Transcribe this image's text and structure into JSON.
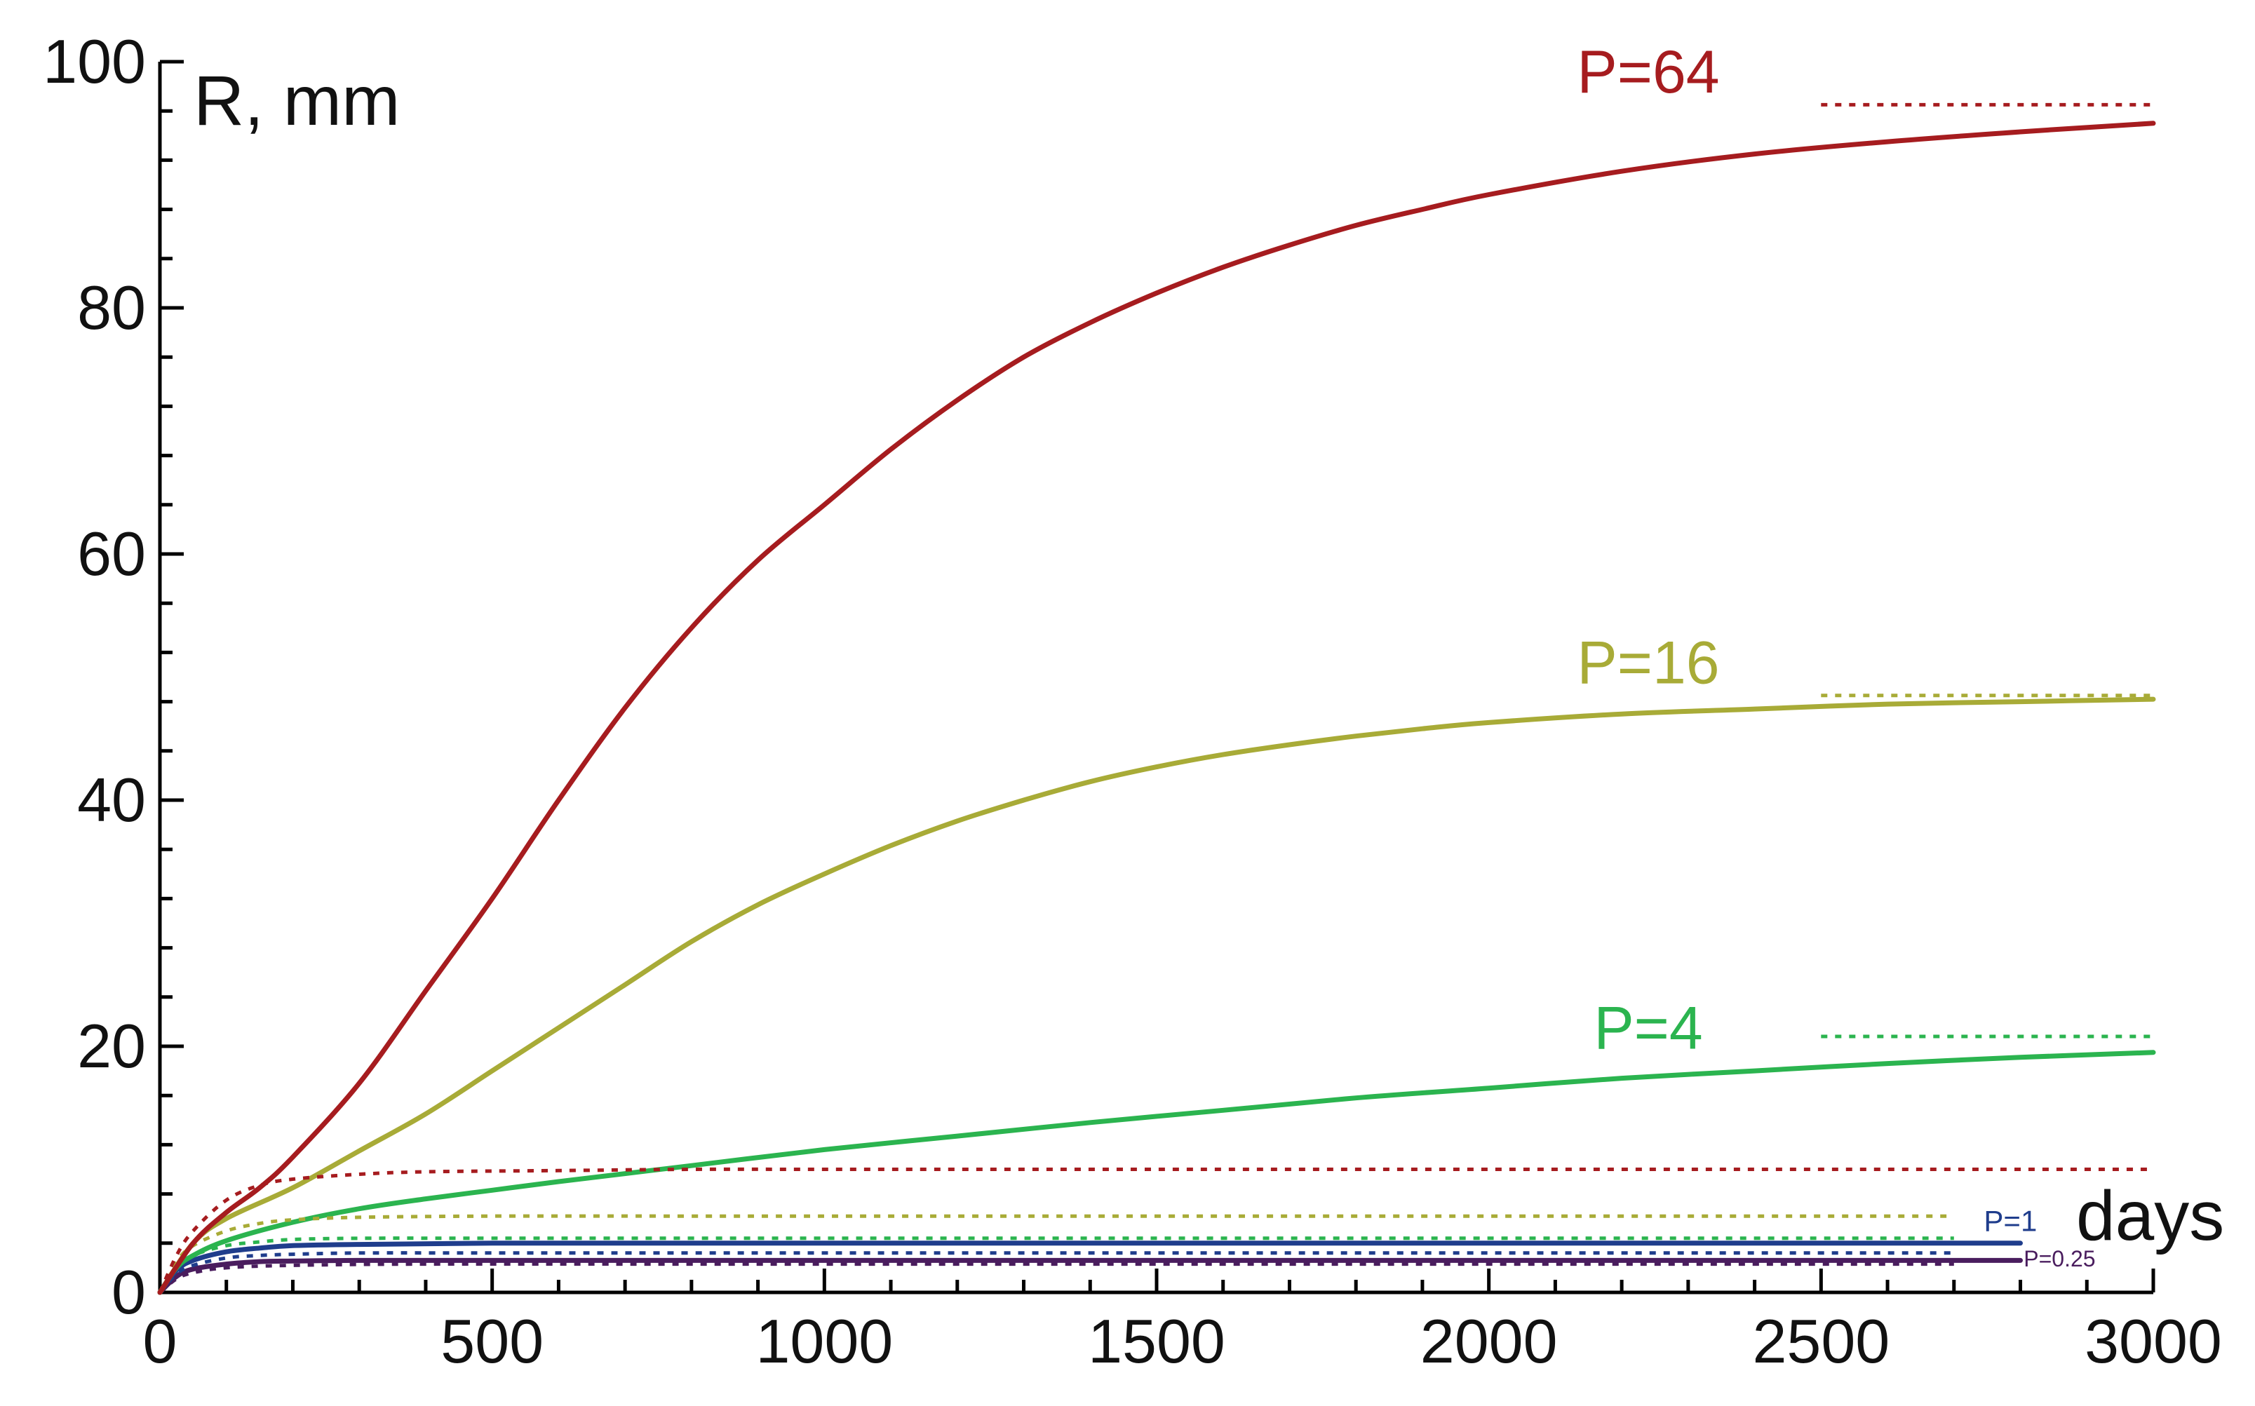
{
  "chart_data": {
    "type": "line",
    "title": "",
    "xlabel": "days",
    "ylabel": "R, mm",
    "xlim": [
      0,
      3000
    ],
    "ylim": [
      0,
      100
    ],
    "xticks": [
      0,
      500,
      1000,
      1500,
      2000,
      2500,
      3000
    ],
    "yticks": [
      0,
      20,
      40,
      60,
      80,
      100
    ],
    "grid": false,
    "series": [
      {
        "name": "P=64",
        "color": "#a61c1f",
        "label_size": "large",
        "solid": {
          "x": [
            0,
            50,
            100,
            150,
            200,
            300,
            400,
            500,
            600,
            700,
            800,
            900,
            1000,
            1100,
            1200,
            1300,
            1400,
            1500,
            1600,
            1700,
            1800,
            1900,
            2000,
            2200,
            2400,
            2600,
            2800,
            3000
          ],
          "y": [
            0,
            4,
            6.5,
            8.5,
            11,
            17,
            24.5,
            32,
            40,
            47.5,
            54,
            59.5,
            64,
            68.5,
            72.5,
            76,
            78.8,
            81.2,
            83.3,
            85.1,
            86.7,
            88,
            89.2,
            91.1,
            92.5,
            93.5,
            94.3,
            95
          ]
        },
        "dotted_short": {
          "x": [
            0,
            25,
            50,
            100,
            150,
            200,
            300,
            400,
            600,
            800,
            1000,
            1500,
            2000,
            2500,
            3000
          ],
          "y": [
            0,
            3,
            5,
            7.5,
            8.7,
            9.2,
            9.6,
            9.8,
            9.9,
            10,
            10,
            10,
            10,
            10,
            10
          ]
        },
        "asymptote": {
          "x": [
            2500,
            3000
          ],
          "y": [
            96.5,
            96.5
          ]
        }
      },
      {
        "name": "P=16",
        "color": "#a8ab37",
        "label_size": "large",
        "solid": {
          "x": [
            0,
            50,
            100,
            200,
            300,
            400,
            500,
            600,
            700,
            800,
            900,
            1000,
            1100,
            1200,
            1300,
            1400,
            1500,
            1600,
            1700,
            1800,
            1900,
            2000,
            2200,
            2400,
            2600,
            2800,
            3000
          ],
          "y": [
            0,
            4,
            6,
            8.5,
            11.5,
            14.5,
            18,
            21.5,
            25,
            28.5,
            31.5,
            34,
            36.3,
            38.3,
            40,
            41.5,
            42.7,
            43.7,
            44.5,
            45.2,
            45.8,
            46.3,
            47,
            47.4,
            47.8,
            48,
            48.2
          ]
        },
        "dotted_short": {
          "x": [
            0,
            25,
            50,
            100,
            150,
            200,
            300,
            500,
            800,
            1200,
            2000,
            2700
          ],
          "y": [
            0,
            2.5,
            3.8,
            5,
            5.6,
            5.9,
            6.1,
            6.2,
            6.2,
            6.2,
            6.2,
            6.2
          ]
        },
        "asymptote": {
          "x": [
            2500,
            3000
          ],
          "y": [
            48.5,
            48.5
          ]
        }
      },
      {
        "name": "P=4",
        "color": "#2bb44f",
        "label_size": "large",
        "solid": {
          "x": [
            0,
            25,
            50,
            100,
            200,
            300,
            400,
            500,
            600,
            800,
            1000,
            1200,
            1400,
            1600,
            1800,
            2000,
            2200,
            2400,
            2600,
            2800,
            3000
          ],
          "y": [
            0,
            2,
            3,
            4.2,
            5.7,
            6.8,
            7.6,
            8.3,
            9,
            10.3,
            11.6,
            12.7,
            13.8,
            14.8,
            15.8,
            16.6,
            17.4,
            18,
            18.6,
            19.1,
            19.5
          ]
        },
        "dotted_short": {
          "x": [
            0,
            25,
            50,
            100,
            150,
            200,
            300,
            500,
            800,
            1200,
            2000,
            2700
          ],
          "y": [
            0,
            2,
            3,
            3.8,
            4.1,
            4.3,
            4.4,
            4.4,
            4.4,
            4.4,
            4.4,
            4.4
          ]
        },
        "asymptote": {
          "x": [
            2500,
            3000
          ],
          "y": [
            20.8,
            20.8
          ]
        }
      },
      {
        "name": "P=1",
        "color": "#1f3d8c",
        "label_size": "small",
        "solid": {
          "x": [
            0,
            25,
            50,
            100,
            150,
            200,
            300,
            500,
            800,
            1200,
            2000,
            2800
          ],
          "y": [
            0,
            1.8,
            2.6,
            3.3,
            3.6,
            3.8,
            3.9,
            4,
            4,
            4,
            4,
            4
          ]
        },
        "dotted_short": {
          "x": [
            0,
            25,
            50,
            100,
            150,
            200,
            300,
            500,
            800,
            1200,
            2000,
            2700
          ],
          "y": [
            0,
            1.5,
            2.2,
            2.8,
            3,
            3.1,
            3.2,
            3.2,
            3.2,
            3.2,
            3.2,
            3.2
          ]
        }
      },
      {
        "name": "P=0.25",
        "color": "#4a1d5e",
        "label_size": "small",
        "solid": {
          "x": [
            0,
            25,
            50,
            100,
            150,
            200,
            300,
            500,
            800,
            1200,
            2000,
            2800
          ],
          "y": [
            0,
            1.3,
            1.9,
            2.3,
            2.5,
            2.55,
            2.6,
            2.6,
            2.6,
            2.6,
            2.6,
            2.6
          ]
        },
        "dotted_short": {
          "x": [
            0,
            25,
            50,
            100,
            200,
            400,
            800,
            1500,
            2700
          ],
          "y": [
            0,
            1.1,
            1.6,
            2,
            2.2,
            2.3,
            2.3,
            2.3,
            2.3
          ]
        }
      }
    ]
  }
}
